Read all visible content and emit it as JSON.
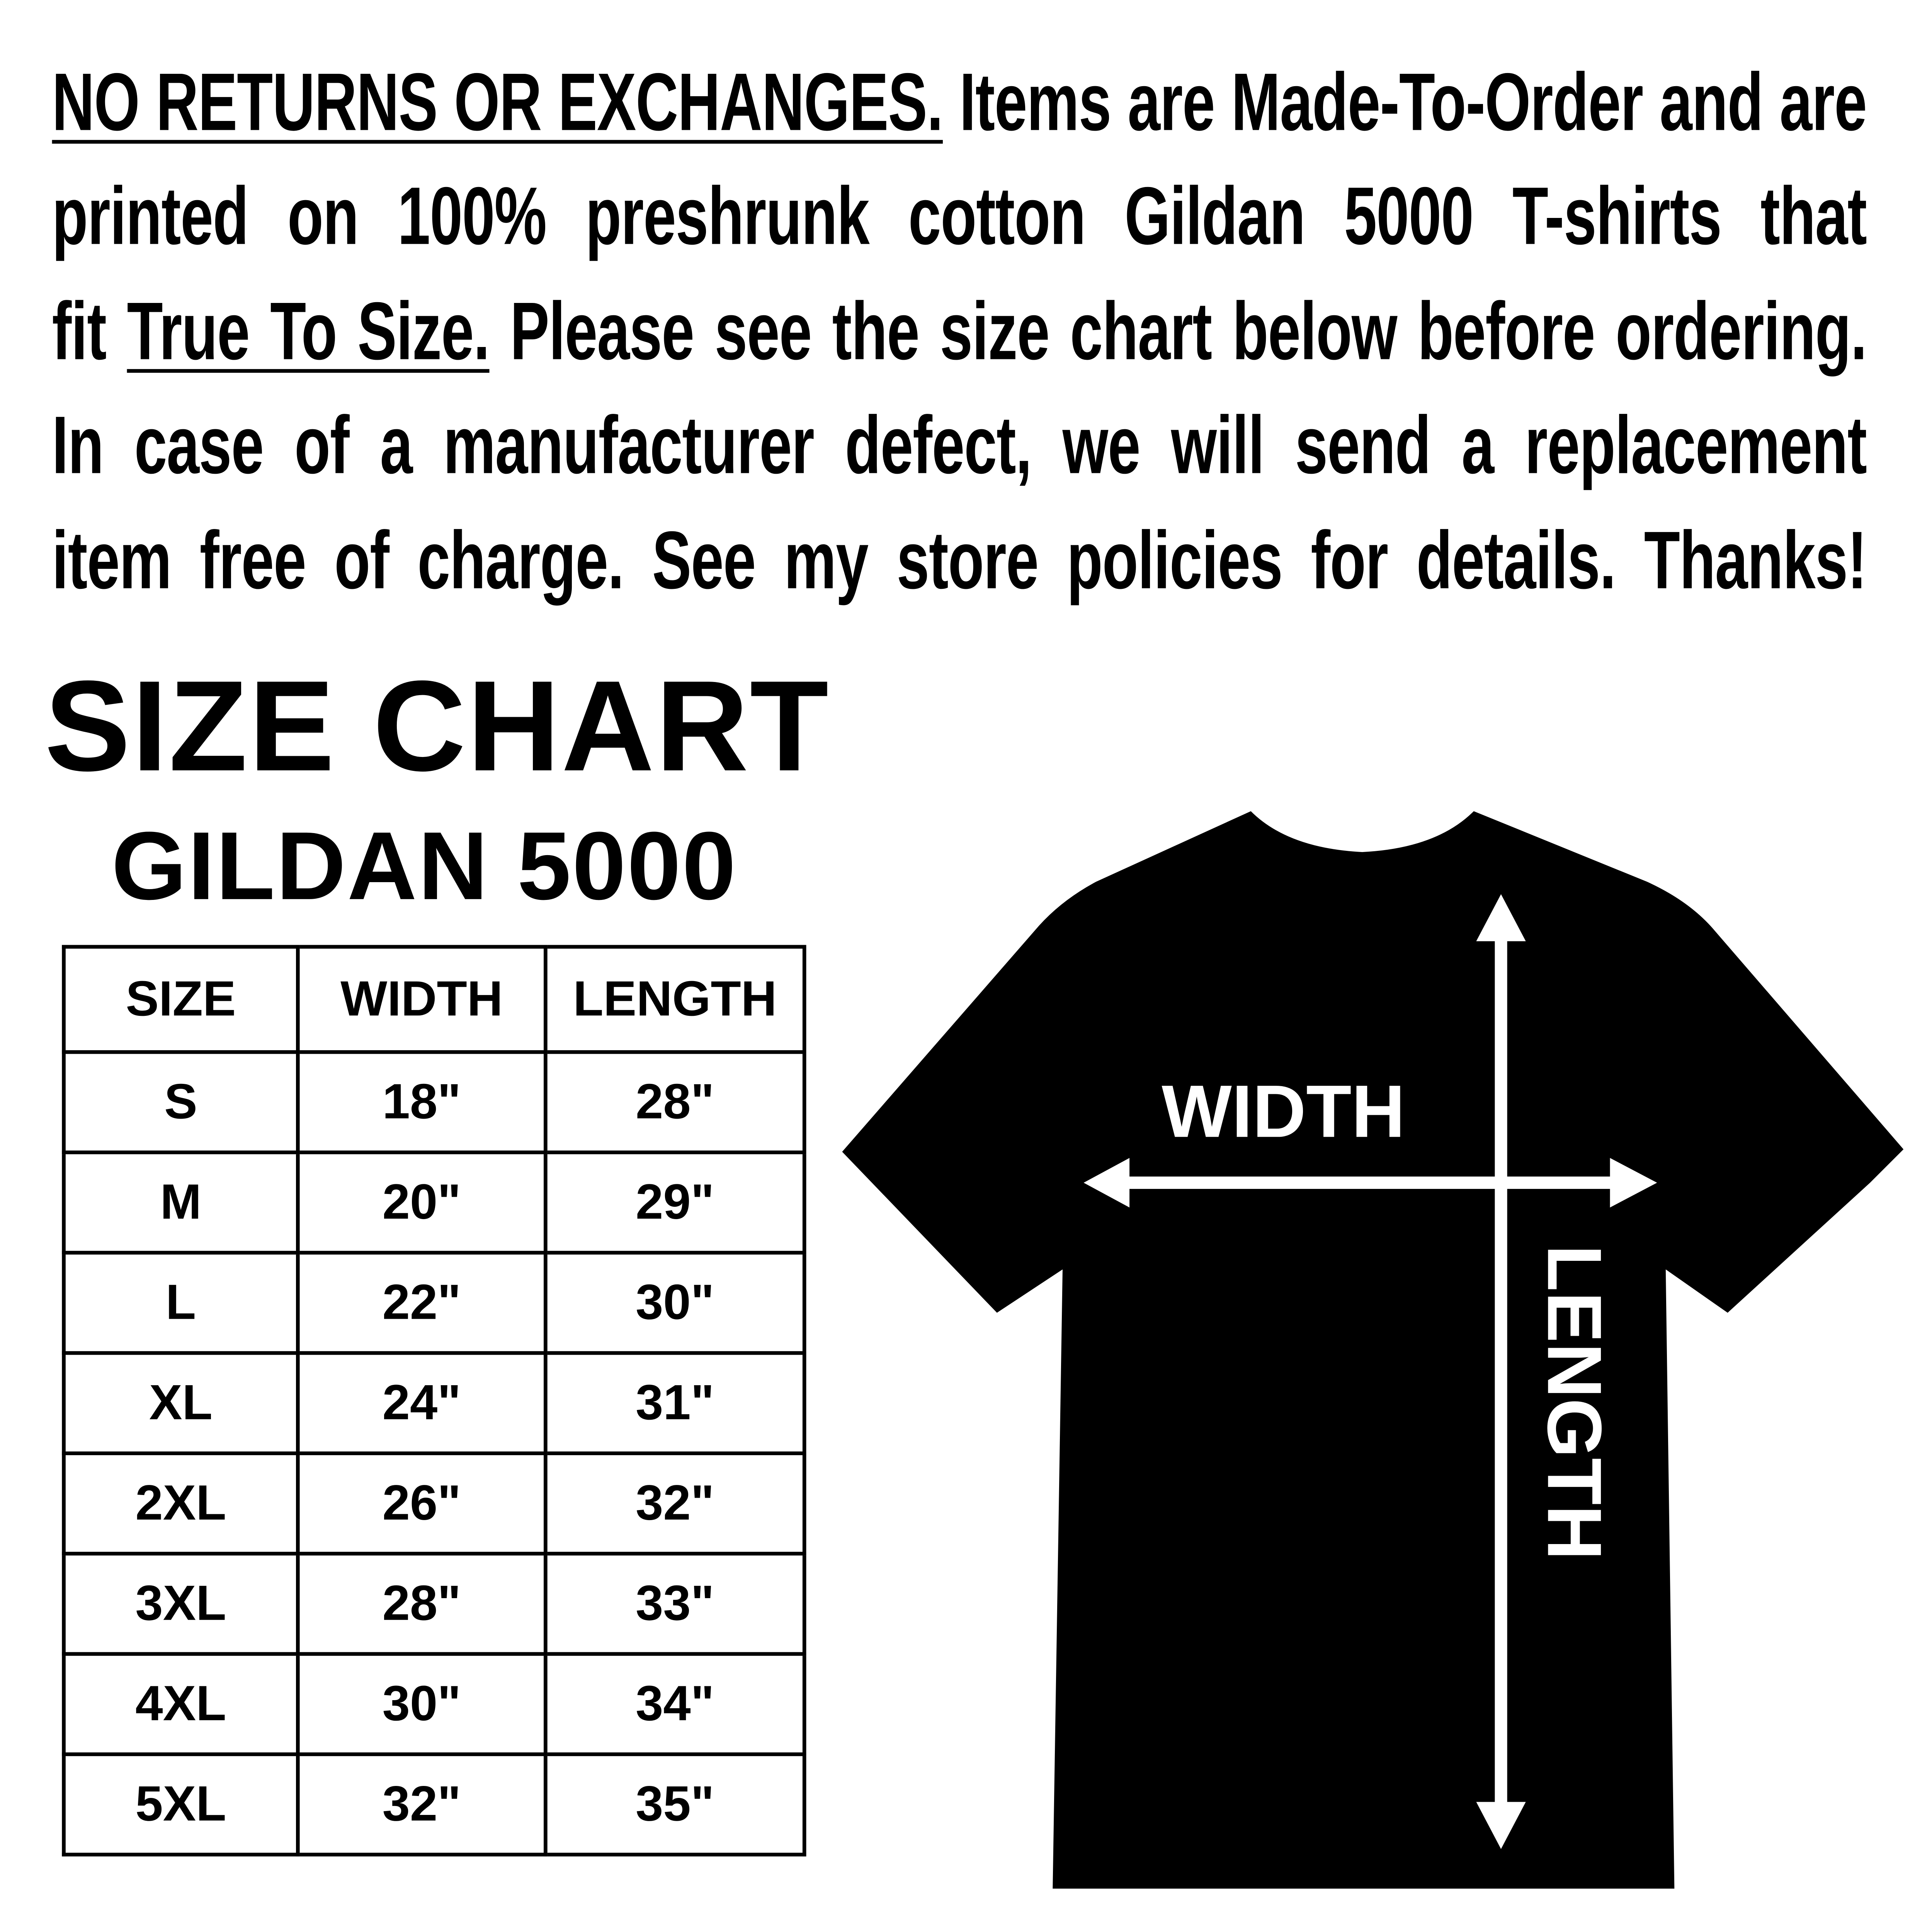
{
  "notice": {
    "lines": [
      {
        "underlined": "NO RETURNS OR EXCHANGES.",
        "text": " Items are Made-To-Order and are"
      },
      {
        "text": "printed on 100% preshrunk cotton Gildan 5000 T-shirts that"
      },
      {
        "pre": "fit ",
        "underlined": "True To Size.",
        "text": " Please see the size chart below before ordering."
      },
      {
        "text": "In case of a manufacturer defect, we will send a replacement"
      },
      {
        "text": "item free of charge. See my store policies for details. Thanks!"
      }
    ]
  },
  "size_chart": {
    "title": "SIZE CHART",
    "subtitle": "GILDAN 5000",
    "headers": [
      "SIZE",
      "WIDTH",
      "LENGTH"
    ],
    "rows": [
      [
        "S",
        "18\"",
        "28\""
      ],
      [
        "M",
        "20\"",
        "29\""
      ],
      [
        "L",
        "22\"",
        "30\""
      ],
      [
        "XL",
        "24\"",
        "31\""
      ],
      [
        "2XL",
        "26\"",
        "32\""
      ],
      [
        "3XL",
        "28\"",
        "33\""
      ],
      [
        "4XL",
        "30\"",
        "34\""
      ],
      [
        "5XL",
        "32\"",
        "35\""
      ]
    ]
  },
  "diagram": {
    "width_label": "WIDTH",
    "length_label": "LENGTH",
    "shirt_color": "#000000",
    "arrow_color": "#ffffff"
  }
}
